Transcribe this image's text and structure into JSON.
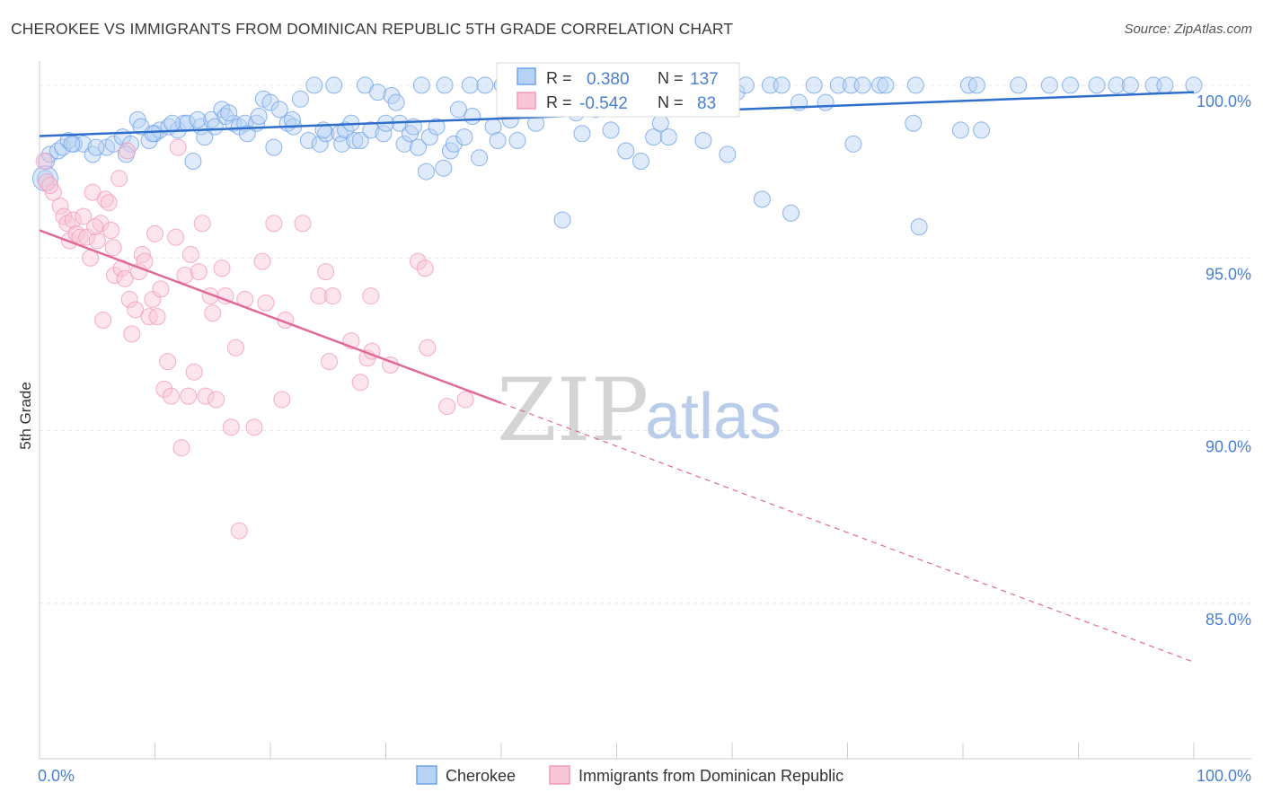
{
  "title": "CHEROKEE VS IMMIGRANTS FROM DOMINICAN REPUBLIC 5TH GRADE CORRELATION CHART",
  "source": "Source: ZipAtlas.com",
  "watermark": {
    "zip": "ZIP",
    "atlas": "atlas"
  },
  "colors": {
    "blue": "#6fa3e8",
    "blue_line": "#2f6fcc",
    "pink": "#f29ab8",
    "pink_line": "#e0699a",
    "tick_text": "#4a7fcf",
    "grid": "#e5e5e5"
  },
  "stats": {
    "r_label": "R =",
    "n_label": "N =",
    "rows": [
      {
        "r": "0.380",
        "n": "137"
      },
      {
        "r": "-0.542",
        "n": "83"
      }
    ]
  },
  "legend": {
    "items": [
      "Cherokee",
      "Immigrants from Dominican Republic"
    ]
  },
  "chart_data": {
    "type": "scatter",
    "title": "CHEROKEE VS IMMIGRANTS FROM DOMINICAN REPUBLIC 5TH GRADE CORRELATION CHART",
    "xlabel": "",
    "ylabel": "5th Grade",
    "xlim": [
      0,
      100
    ],
    "ylim": [
      80.5,
      100.7
    ],
    "y_ticks": [
      85.0,
      90.0,
      95.0,
      100.0
    ],
    "y_tick_labels": [
      "85.0%",
      "90.0%",
      "95.0%",
      "100.0%"
    ],
    "x_tick_labels": [
      "0.0%",
      "100.0%"
    ],
    "grid": true,
    "legend_position": "bottom-center",
    "series": [
      {
        "name": "Cherokee",
        "color": "#6fa3e8",
        "trend": {
          "x": [
            0,
            100
          ],
          "y": [
            98.53,
            99.8
          ]
        },
        "points": [
          [
            0.5,
            97.3
          ],
          [
            0.6,
            97.8
          ],
          [
            0.9,
            98.0
          ],
          [
            1.6,
            98.1
          ],
          [
            2.0,
            98.2
          ],
          [
            2.5,
            98.4
          ],
          [
            3.0,
            98.3
          ],
          [
            3.8,
            98.3
          ],
          [
            4.6,
            98.0
          ],
          [
            5.8,
            98.2
          ],
          [
            6.4,
            98.3
          ],
          [
            7.2,
            98.5
          ],
          [
            7.9,
            98.3
          ],
          [
            8.5,
            99.0
          ],
          [
            8.8,
            98.8
          ],
          [
            9.5,
            98.4
          ],
          [
            10.0,
            98.6
          ],
          [
            10.4,
            98.7
          ],
          [
            11.2,
            98.8
          ],
          [
            12.0,
            98.7
          ],
          [
            12.5,
            98.9
          ],
          [
            12.8,
            98.9
          ],
          [
            13.3,
            97.8
          ],
          [
            14.0,
            98.8
          ],
          [
            14.3,
            98.5
          ],
          [
            14.9,
            99.0
          ],
          [
            15.2,
            98.8
          ],
          [
            15.8,
            99.3
          ],
          [
            16.1,
            99.1
          ],
          [
            16.8,
            98.9
          ],
          [
            17.3,
            98.8
          ],
          [
            17.8,
            98.9
          ],
          [
            18.0,
            98.6
          ],
          [
            18.8,
            98.9
          ],
          [
            19.4,
            99.6
          ],
          [
            20.0,
            99.5
          ],
          [
            20.3,
            98.2
          ],
          [
            20.8,
            99.3
          ],
          [
            21.5,
            98.9
          ],
          [
            22.0,
            98.8
          ],
          [
            22.6,
            99.6
          ],
          [
            23.3,
            98.4
          ],
          [
            23.8,
            100.0
          ],
          [
            24.3,
            98.3
          ],
          [
            24.8,
            98.6
          ],
          [
            25.5,
            100.0
          ],
          [
            26.0,
            98.6
          ],
          [
            26.2,
            98.3
          ],
          [
            26.5,
            98.7
          ],
          [
            27.3,
            98.4
          ],
          [
            27.8,
            98.4
          ],
          [
            28.2,
            100.0
          ],
          [
            28.7,
            98.7
          ],
          [
            29.3,
            99.8
          ],
          [
            29.8,
            98.6
          ],
          [
            30.5,
            99.7
          ],
          [
            30.9,
            99.5
          ],
          [
            31.2,
            98.9
          ],
          [
            31.6,
            98.3
          ],
          [
            32.1,
            98.6
          ],
          [
            32.8,
            98.2
          ],
          [
            33.1,
            100.0
          ],
          [
            33.5,
            97.5
          ],
          [
            33.8,
            98.5
          ],
          [
            35.1,
            100.0
          ],
          [
            35.0,
            97.6
          ],
          [
            35.6,
            98.1
          ],
          [
            35.9,
            98.3
          ],
          [
            36.3,
            99.3
          ],
          [
            37.3,
            100.0
          ],
          [
            37.5,
            99.1
          ],
          [
            38.1,
            97.9
          ],
          [
            38.6,
            100.0
          ],
          [
            39.3,
            98.8
          ],
          [
            40.1,
            100.0
          ],
          [
            40.8,
            99.0
          ],
          [
            41.4,
            98.4
          ],
          [
            42.2,
            100.0
          ],
          [
            44.1,
            100.0
          ],
          [
            45.3,
            96.1
          ],
          [
            46.0,
            100.0
          ],
          [
            47.0,
            98.6
          ],
          [
            47.5,
            100.0
          ],
          [
            48.2,
            99.3
          ],
          [
            50.1,
            100.0
          ],
          [
            50.8,
            98.1
          ],
          [
            51.6,
            99.5
          ],
          [
            52.1,
            97.8
          ],
          [
            53.2,
            98.5
          ],
          [
            54.5,
            98.5
          ],
          [
            55.0,
            100.0
          ],
          [
            56.7,
            100.0
          ],
          [
            58.1,
            100.0
          ],
          [
            59.2,
            100.0
          ],
          [
            59.6,
            98.0
          ],
          [
            60.4,
            99.8
          ],
          [
            61.2,
            100.0
          ],
          [
            62.6,
            96.7
          ],
          [
            63.3,
            100.0
          ],
          [
            64.3,
            100.0
          ],
          [
            65.1,
            96.3
          ],
          [
            65.8,
            99.5
          ],
          [
            67.1,
            100.0
          ],
          [
            68.1,
            99.5
          ],
          [
            69.2,
            100.0
          ],
          [
            70.3,
            100.0
          ],
          [
            70.5,
            98.3
          ],
          [
            71.3,
            100.0
          ],
          [
            72.8,
            100.0
          ],
          [
            73.3,
            100.0
          ],
          [
            75.9,
            100.0
          ],
          [
            75.7,
            98.9
          ],
          [
            76.2,
            95.9
          ],
          [
            79.8,
            98.7
          ],
          [
            80.5,
            100.0
          ],
          [
            81.2,
            100.0
          ],
          [
            81.6,
            98.7
          ],
          [
            84.8,
            100.0
          ],
          [
            87.5,
            100.0
          ],
          [
            89.3,
            100.0
          ],
          [
            91.6,
            100.0
          ],
          [
            93.3,
            100.0
          ],
          [
            94.5,
            100.0
          ],
          [
            96.5,
            100.0
          ],
          [
            97.5,
            100.0
          ],
          [
            100.0,
            100.0
          ],
          [
            2.8,
            98.3
          ],
          [
            4.9,
            98.2
          ],
          [
            7.5,
            98.0
          ],
          [
            9.8,
            98.6
          ],
          [
            11.5,
            98.9
          ],
          [
            13.7,
            99.0
          ],
          [
            16.4,
            99.2
          ],
          [
            19.0,
            99.1
          ],
          [
            21.9,
            99.0
          ],
          [
            24.6,
            98.7
          ],
          [
            27.0,
            98.9
          ],
          [
            30.0,
            98.9
          ],
          [
            32.4,
            98.8
          ],
          [
            34.4,
            98.8
          ],
          [
            36.8,
            98.5
          ],
          [
            39.7,
            98.4
          ],
          [
            43.0,
            98.9
          ],
          [
            46.5,
            99.2
          ],
          [
            49.5,
            98.7
          ],
          [
            53.8,
            98.9
          ],
          [
            57.5,
            98.4
          ]
        ]
      },
      {
        "name": "Immigrants from Dominican Republic",
        "color": "#f29ab8",
        "trend": {
          "x": [
            0,
            40
          ],
          "y": [
            95.8,
            90.8
          ]
        },
        "trend_dashed": {
          "x": [
            40,
            100
          ],
          "y": [
            90.8,
            83.3
          ]
        },
        "points": [
          [
            0.4,
            97.8
          ],
          [
            0.6,
            97.2
          ],
          [
            1.2,
            96.9
          ],
          [
            1.8,
            96.5
          ],
          [
            2.1,
            96.2
          ],
          [
            2.4,
            96.0
          ],
          [
            2.6,
            95.5
          ],
          [
            2.9,
            96.1
          ],
          [
            3.2,
            95.7
          ],
          [
            3.5,
            95.6
          ],
          [
            3.8,
            96.2
          ],
          [
            4.1,
            95.6
          ],
          [
            4.4,
            95.0
          ],
          [
            4.6,
            96.9
          ],
          [
            5.0,
            95.5
          ],
          [
            5.3,
            96.0
          ],
          [
            5.5,
            93.2
          ],
          [
            5.7,
            96.7
          ],
          [
            6.0,
            96.6
          ],
          [
            6.2,
            95.8
          ],
          [
            6.4,
            95.3
          ],
          [
            6.5,
            94.5
          ],
          [
            6.9,
            97.3
          ],
          [
            7.1,
            94.7
          ],
          [
            7.4,
            94.4
          ],
          [
            7.6,
            98.1
          ],
          [
            7.8,
            93.8
          ],
          [
            8.0,
            92.8
          ],
          [
            8.3,
            93.5
          ],
          [
            8.6,
            94.6
          ],
          [
            8.9,
            95.1
          ],
          [
            9.1,
            94.9
          ],
          [
            9.5,
            93.3
          ],
          [
            9.8,
            93.8
          ],
          [
            10.0,
            95.7
          ],
          [
            10.2,
            93.3
          ],
          [
            10.5,
            94.1
          ],
          [
            10.8,
            91.2
          ],
          [
            11.1,
            92.0
          ],
          [
            11.4,
            91.0
          ],
          [
            11.8,
            95.6
          ],
          [
            12.0,
            98.2
          ],
          [
            12.3,
            89.5
          ],
          [
            12.6,
            94.5
          ],
          [
            12.9,
            91.0
          ],
          [
            13.1,
            95.1
          ],
          [
            13.4,
            91.7
          ],
          [
            13.8,
            94.6
          ],
          [
            14.1,
            96.0
          ],
          [
            14.4,
            91.0
          ],
          [
            14.8,
            93.9
          ],
          [
            15.0,
            93.4
          ],
          [
            15.3,
            90.9
          ],
          [
            15.8,
            94.7
          ],
          [
            16.1,
            93.9
          ],
          [
            16.6,
            90.1
          ],
          [
            17.0,
            92.4
          ],
          [
            17.3,
            87.1
          ],
          [
            17.8,
            93.8
          ],
          [
            18.6,
            90.1
          ],
          [
            19.3,
            94.9
          ],
          [
            19.6,
            93.7
          ],
          [
            20.3,
            96.0
          ],
          [
            21.0,
            90.9
          ],
          [
            21.3,
            93.2
          ],
          [
            22.8,
            96.0
          ],
          [
            24.2,
            93.9
          ],
          [
            24.8,
            94.6
          ],
          [
            25.1,
            92.0
          ],
          [
            25.4,
            93.9
          ],
          [
            27.0,
            92.6
          ],
          [
            27.8,
            91.4
          ],
          [
            28.4,
            92.1
          ],
          [
            28.7,
            93.9
          ],
          [
            28.8,
            92.3
          ],
          [
            30.4,
            91.9
          ],
          [
            32.8,
            94.9
          ],
          [
            33.4,
            94.7
          ],
          [
            33.6,
            92.4
          ],
          [
            35.3,
            90.7
          ],
          [
            36.9,
            90.9
          ],
          [
            0.9,
            97.1
          ],
          [
            4.8,
            95.9
          ]
        ]
      }
    ]
  }
}
